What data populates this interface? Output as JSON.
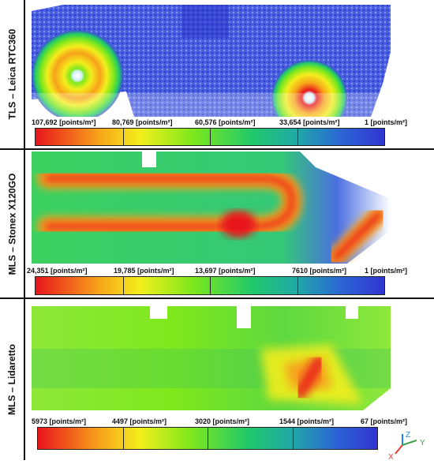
{
  "panels": [
    {
      "label": "TLS – Leica RTC360",
      "ticks": [
        "107,692",
        "80,769",
        "60,576",
        "33,654",
        "1"
      ],
      "unit": "[points/m²]"
    },
    {
      "label": "MLS – Stonex X120GO",
      "ticks": [
        "24,351",
        "19,785",
        "13,697",
        "7610",
        "1"
      ],
      "unit": "[points/m²]"
    },
    {
      "label": "MLS – Lidaretto",
      "ticks": [
        "5973",
        "4497",
        "3020",
        "1544",
        "67"
      ],
      "unit": "[points/m²]"
    }
  ],
  "axes": {
    "x": "X",
    "y": "Y",
    "z": "Z",
    "x_color": "#e53935",
    "y_color": "#43a047",
    "z_color": "#1e88e5"
  },
  "palette": [
    "#e8141c",
    "#f7a21a",
    "#f3ee1c",
    "#7ee81c",
    "#21c96a",
    "#20a8a6",
    "#2c64d6",
    "#3134d0"
  ]
}
